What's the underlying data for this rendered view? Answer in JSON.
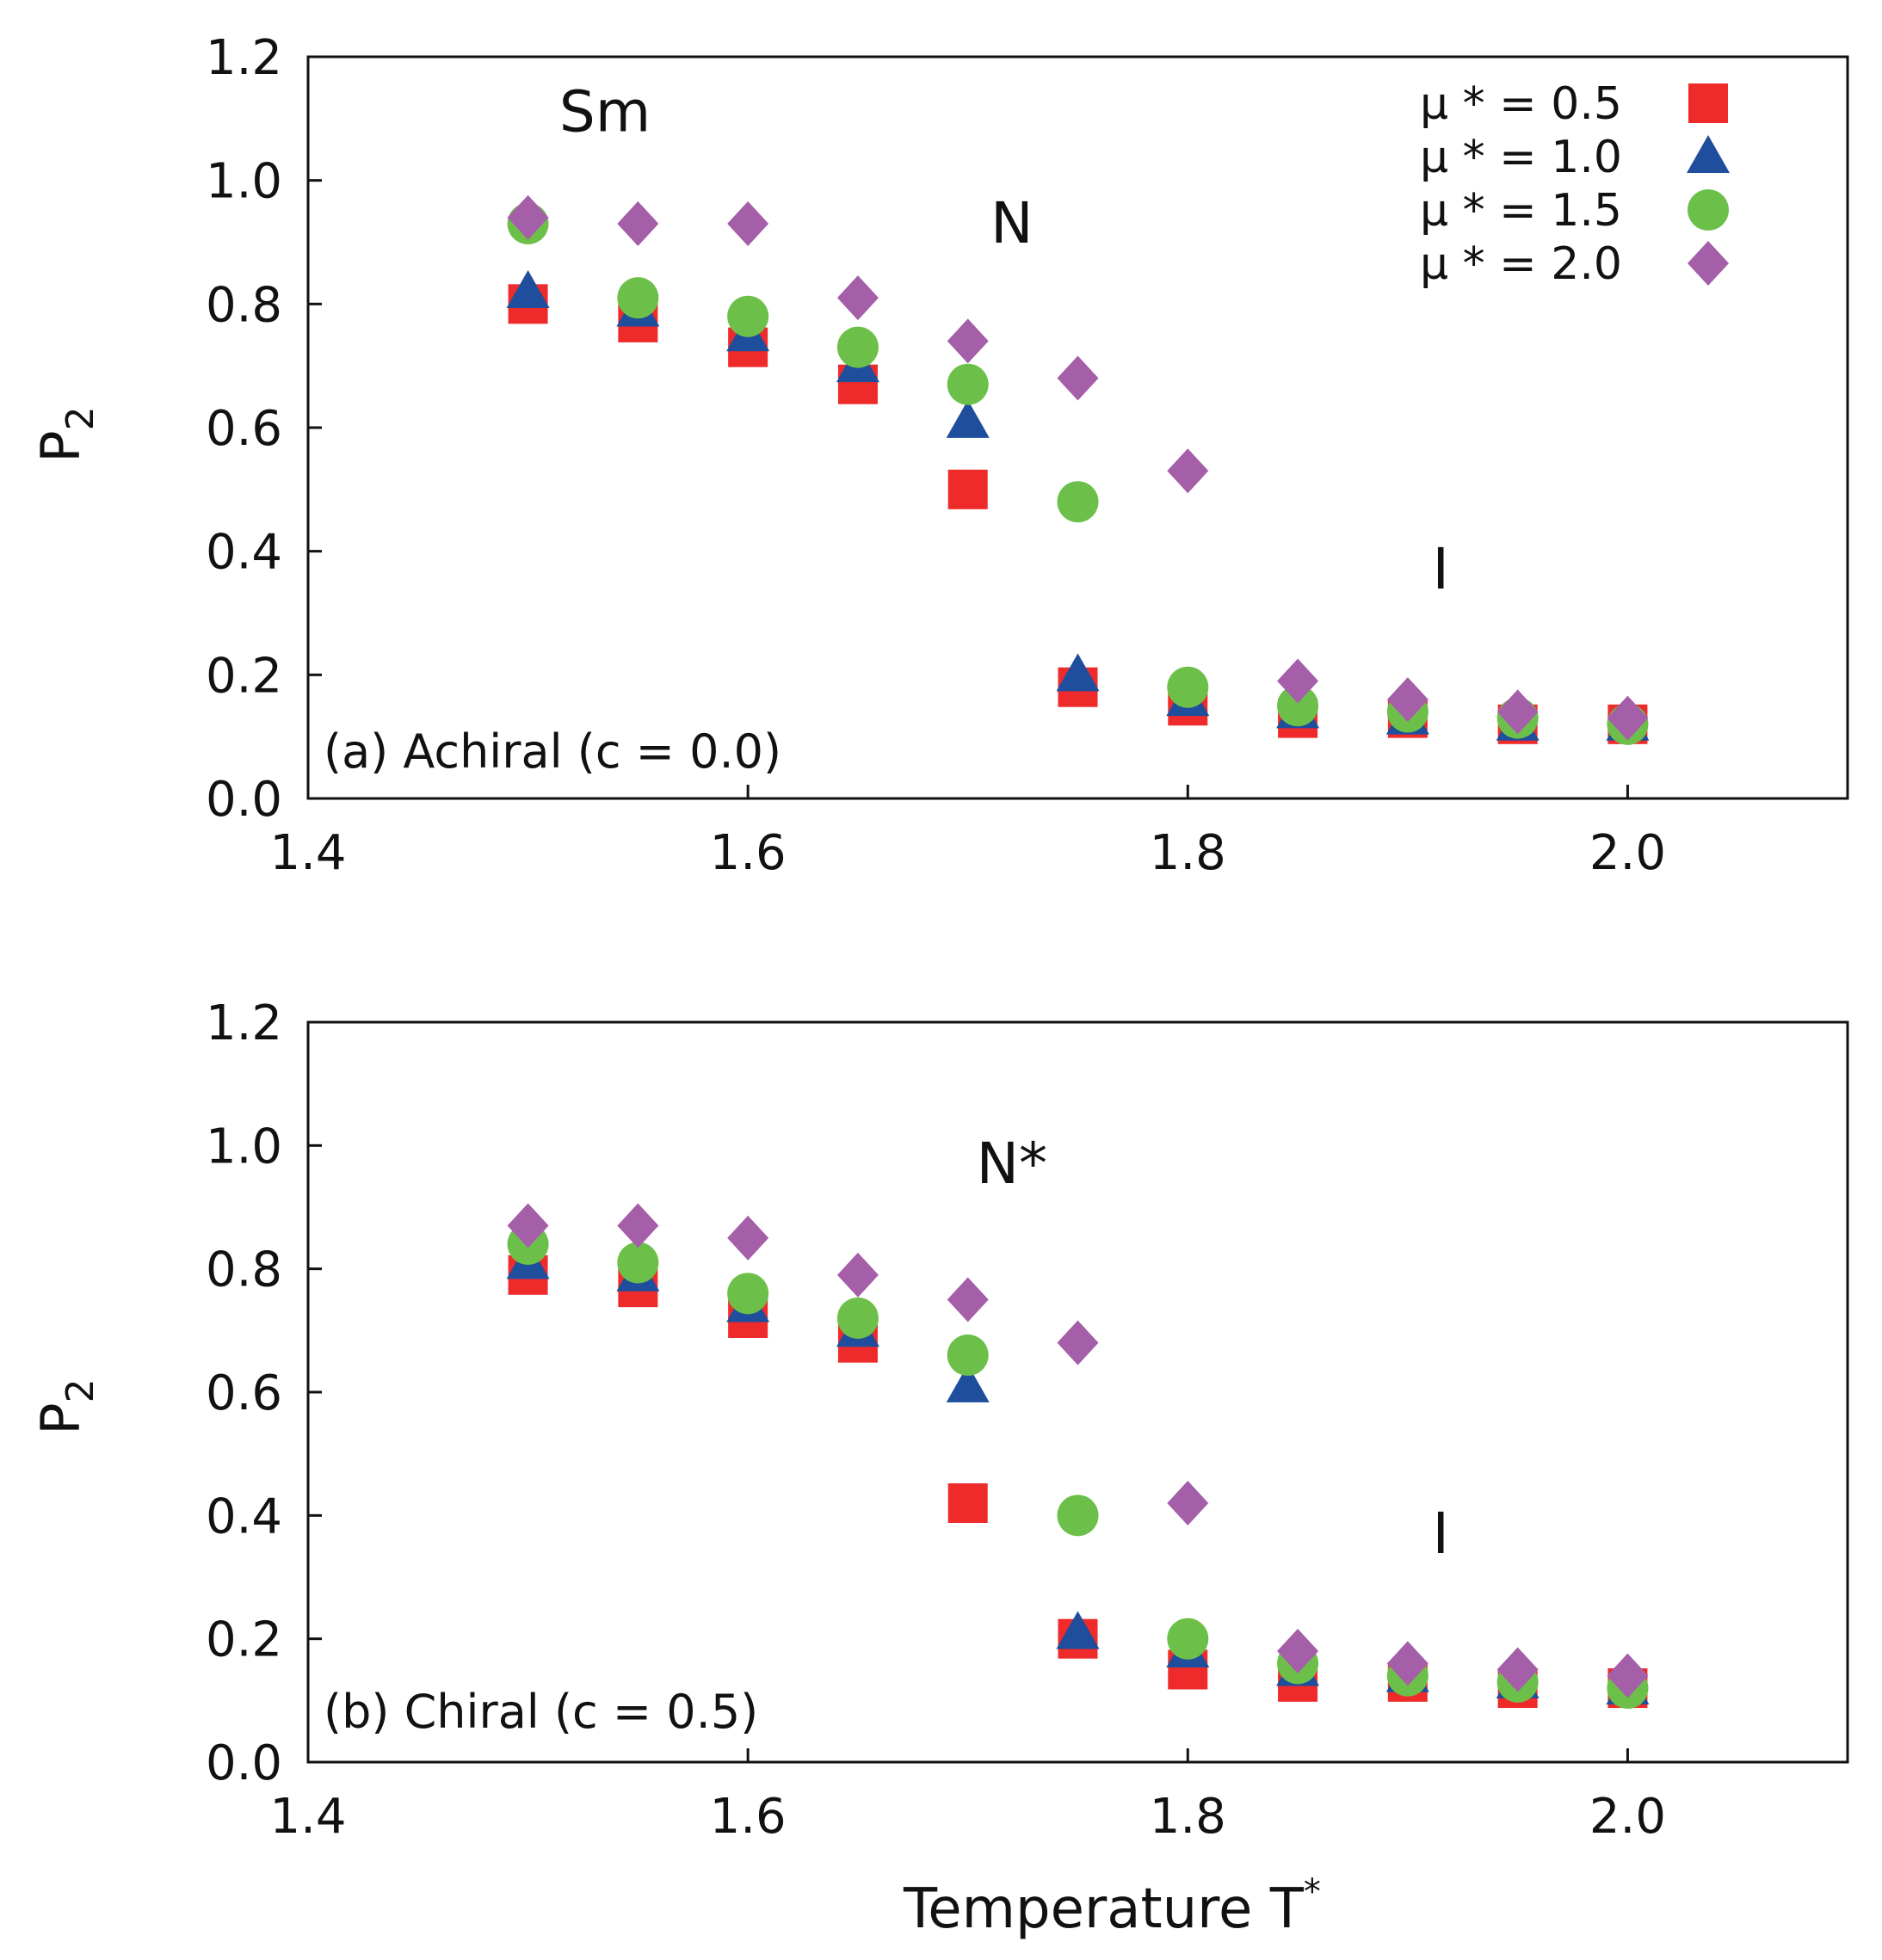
{
  "figure": {
    "x_title": "Temperature T",
    "x_title_sup": "*"
  },
  "colors": {
    "mu_0_5": "#ee2a2b",
    "mu_1_0": "#1f4e9c",
    "mu_1_5": "#6cc04a",
    "mu_2_0": "#a55fa9",
    "axis": "#111111"
  },
  "legend": {
    "entries": [
      {
        "label": "μ * = 0.5",
        "marker": "square",
        "color": "#ee2a2b"
      },
      {
        "label": "μ * = 1.0",
        "marker": "triangle",
        "color": "#1f4e9c"
      },
      {
        "label": "μ * = 1.5",
        "marker": "circle",
        "color": "#6cc04a"
      },
      {
        "label": "μ * = 2.0",
        "marker": "diamond",
        "color": "#a55fa9"
      }
    ]
  },
  "chart_data": [
    {
      "type": "scatter",
      "panel_label": "(a) Achiral (c = 0.0)",
      "ylabel": "P",
      "ylabel_sub": "2",
      "xlabel": "",
      "xlim": [
        1.4,
        2.1
      ],
      "ylim": [
        0.0,
        1.2
      ],
      "xticks": [
        "1.4",
        "1.6",
        "1.8",
        "2.0"
      ],
      "yticks": [
        "0.0",
        "0.2",
        "0.4",
        "0.6",
        "0.8",
        "1.0",
        "1.2"
      ],
      "phase_labels": [
        {
          "text": "Sm",
          "x": 1.535,
          "y": 1.11
        },
        {
          "text": "N",
          "x": 1.72,
          "y": 0.93
        },
        {
          "text": "I",
          "x": 1.915,
          "y": 0.37
        }
      ],
      "series": [
        {
          "name": "μ * = 0.5",
          "marker": "square",
          "color": "#ee2a2b",
          "x": [
            1.5,
            1.55,
            1.6,
            1.65,
            1.7,
            1.75,
            1.8,
            1.85,
            1.9,
            1.95,
            2.0
          ],
          "y": [
            0.8,
            0.77,
            0.73,
            0.67,
            0.5,
            0.18,
            0.15,
            0.13,
            0.13,
            0.12,
            0.12
          ]
        },
        {
          "name": "μ * = 1.0",
          "marker": "triangle",
          "color": "#1f4e9c",
          "x": [
            1.5,
            1.55,
            1.6,
            1.65,
            1.7,
            1.75,
            1.8,
            1.85,
            1.9,
            1.95,
            2.0
          ],
          "y": [
            0.82,
            0.79,
            0.75,
            0.7,
            0.61,
            0.2,
            0.16,
            0.14,
            0.13,
            0.12,
            0.12
          ]
        },
        {
          "name": "μ * = 1.5",
          "marker": "circle",
          "color": "#6cc04a",
          "x": [
            1.5,
            1.55,
            1.6,
            1.65,
            1.7,
            1.75,
            1.8,
            1.85,
            1.9,
            1.95,
            2.0
          ],
          "y": [
            0.93,
            0.81,
            0.78,
            0.73,
            0.67,
            0.48,
            0.18,
            0.15,
            0.14,
            0.13,
            0.12
          ]
        },
        {
          "name": "μ * = 2.0",
          "marker": "diamond",
          "color": "#a55fa9",
          "x": [
            1.5,
            1.55,
            1.6,
            1.65,
            1.7,
            1.75,
            1.8,
            1.85,
            1.9,
            1.95,
            2.0
          ],
          "y": [
            0.94,
            0.93,
            0.93,
            0.81,
            0.74,
            0.68,
            0.53,
            0.19,
            0.16,
            0.14,
            0.13
          ]
        }
      ]
    },
    {
      "type": "scatter",
      "panel_label": "(b) Chiral (c = 0.5)",
      "ylabel": "P",
      "ylabel_sub": "2",
      "xlabel": "Temperature T*",
      "xlim": [
        1.4,
        2.1
      ],
      "ylim": [
        0.0,
        1.2
      ],
      "xticks": [
        "1.4",
        "1.6",
        "1.8",
        "2.0"
      ],
      "yticks": [
        "0.0",
        "0.2",
        "0.4",
        "0.6",
        "0.8",
        "1.0",
        "1.2"
      ],
      "phase_labels": [
        {
          "text": "N*",
          "x": 1.72,
          "y": 0.97
        },
        {
          "text": "I",
          "x": 1.915,
          "y": 0.37
        }
      ],
      "series": [
        {
          "name": "μ * = 0.5",
          "marker": "square",
          "color": "#ee2a2b",
          "x": [
            1.5,
            1.55,
            1.6,
            1.65,
            1.7,
            1.75,
            1.8,
            1.85,
            1.9,
            1.95,
            2.0
          ],
          "y": [
            0.79,
            0.77,
            0.72,
            0.68,
            0.42,
            0.2,
            0.15,
            0.13,
            0.13,
            0.12,
            0.12
          ]
        },
        {
          "name": "μ * = 1.0",
          "marker": "triangle",
          "color": "#1f4e9c",
          "x": [
            1.5,
            1.55,
            1.6,
            1.65,
            1.7,
            1.75,
            1.8,
            1.85,
            1.9,
            1.95,
            2.0
          ],
          "y": [
            0.81,
            0.79,
            0.74,
            0.7,
            0.61,
            0.21,
            0.18,
            0.15,
            0.14,
            0.13,
            0.12
          ]
        },
        {
          "name": "μ * = 1.5",
          "marker": "circle",
          "color": "#6cc04a",
          "x": [
            1.5,
            1.55,
            1.6,
            1.65,
            1.7,
            1.75,
            1.8,
            1.85,
            1.9,
            1.95,
            2.0
          ],
          "y": [
            0.84,
            0.81,
            0.76,
            0.72,
            0.66,
            0.4,
            0.2,
            0.16,
            0.14,
            0.13,
            0.12
          ]
        },
        {
          "name": "μ * = 2.0",
          "marker": "diamond",
          "color": "#a55fa9",
          "x": [
            1.5,
            1.55,
            1.6,
            1.65,
            1.7,
            1.75,
            1.8,
            1.85,
            1.9,
            1.95,
            2.0
          ],
          "y": [
            0.87,
            0.87,
            0.85,
            0.79,
            0.75,
            0.68,
            0.42,
            0.18,
            0.16,
            0.15,
            0.14
          ]
        }
      ]
    }
  ]
}
